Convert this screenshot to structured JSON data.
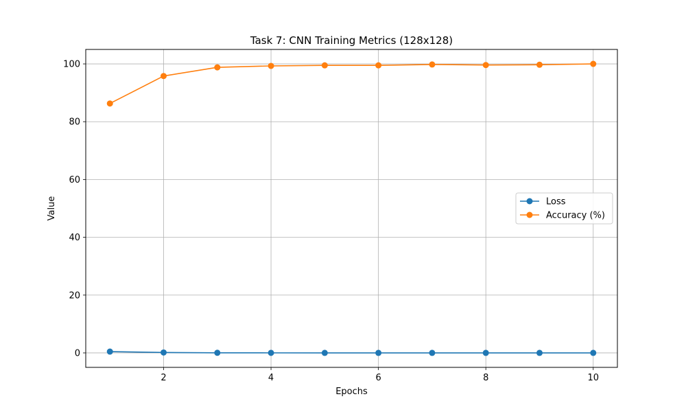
{
  "chart_data": {
    "type": "line",
    "title": "Task 7: CNN Training Metrics (128x128)",
    "xlabel": "Epochs",
    "ylabel": "Value",
    "xlim": [
      0.55,
      10.45
    ],
    "ylim": [
      -5,
      105
    ],
    "x_ticks": [
      2,
      4,
      6,
      8,
      10
    ],
    "y_ticks": [
      0,
      20,
      40,
      60,
      80,
      100
    ],
    "grid": true,
    "legend_position": "center-right",
    "x": [
      1,
      2,
      3,
      4,
      5,
      6,
      7,
      8,
      9,
      10
    ],
    "series": [
      {
        "name": "Loss",
        "color": "#1f77b4",
        "marker": "circle",
        "values": [
          0.45,
          0.15,
          0.04,
          0.02,
          0.01,
          0.01,
          0.01,
          0.01,
          0.01,
          0.01
        ]
      },
      {
        "name": "Accuracy (%)",
        "color": "#ff7f0e",
        "marker": "circle",
        "values": [
          86.3,
          95.8,
          98.8,
          99.3,
          99.5,
          99.5,
          99.8,
          99.6,
          99.7,
          100.0
        ]
      }
    ]
  }
}
